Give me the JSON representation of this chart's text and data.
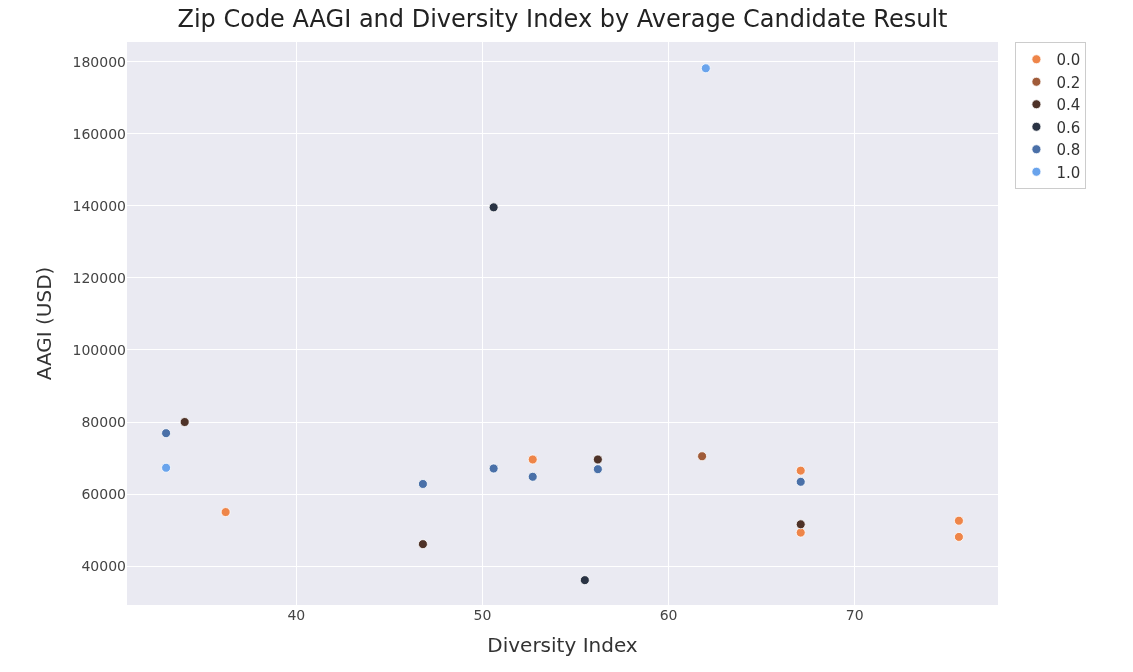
{
  "chart_data": {
    "type": "scatter",
    "title": "Zip Code AAGI and Diversity Index by Average Candidate Result",
    "xlabel": "Diversity Index",
    "ylabel": "AAGI (USD)",
    "xlim": [
      30.9,
      77.7
    ],
    "xticks": [
      40,
      50,
      60,
      70
    ],
    "ylim": [
      29200,
      185500
    ],
    "yticks": [
      40000,
      60000,
      80000,
      100000,
      120000,
      140000,
      160000,
      180000
    ],
    "grid": true,
    "legend": "top right",
    "marker": "circle",
    "series": [
      {
        "name": "0.0",
        "color": "#ee8549",
        "x": [
          36.2,
          46.8,
          52.7,
          67.1,
          67.1,
          75.6,
          75.6
        ],
        "values": [
          55000,
          null,
          69600,
          66500,
          49300,
          52600,
          48100
        ]
      },
      {
        "name": "0.2",
        "color": "#a05b39",
        "x": [
          61.8
        ],
        "values": [
          70500
        ]
      },
      {
        "name": "0.4",
        "color": "#4e3228",
        "x": [
          34.0,
          46.8,
          56.2,
          67.1
        ],
        "values": [
          80000,
          46100,
          69600,
          51600
        ]
      },
      {
        "name": "0.6",
        "color": "#2a3344",
        "x": [
          55.5,
          50.6
        ],
        "values": [
          36100,
          139600
        ]
      },
      {
        "name": "0.8",
        "color": "#4a70a8",
        "x": [
          33.0,
          46.8,
          50.6,
          52.7,
          56.2,
          67.1
        ],
        "values": [
          76900,
          62800,
          67100,
          64800,
          66900,
          63400
        ]
      },
      {
        "name": "1.0",
        "color": "#69a3ec",
        "x": [
          33.0,
          62.0
        ],
        "values": [
          67300,
          178200
        ]
      }
    ]
  }
}
